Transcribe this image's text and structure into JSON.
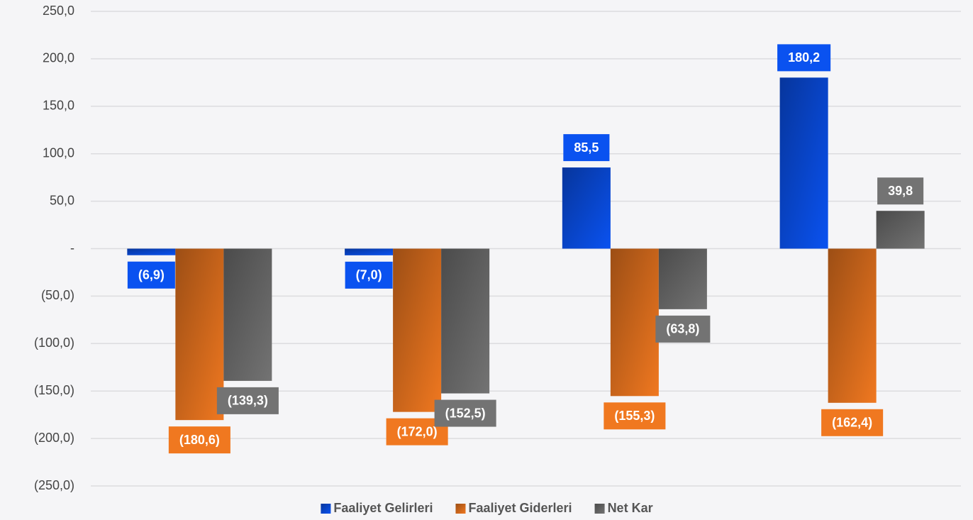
{
  "chart_data": {
    "type": "bar",
    "categories": [
      null,
      null,
      null,
      null
    ],
    "series": [
      {
        "name": "Faaliyet Gelirleri",
        "color": "#0a52f0",
        "values": [
          -6.9,
          -7.0,
          85.5,
          180.2
        ],
        "value_labels": [
          "(6,9)",
          "(7,0)",
          "85,5",
          "180,2"
        ]
      },
      {
        "name": "Faaliyet Giderleri",
        "color": "#f07820",
        "values": [
          -180.6,
          -172.0,
          -155.3,
          -162.4
        ],
        "value_labels": [
          "(180,6)",
          "(172,0)",
          "(155,3)",
          "(162,4)"
        ]
      },
      {
        "name": "Net Kar",
        "color": "#737373",
        "values": [
          -139.3,
          -152.5,
          -63.8,
          39.8
        ],
        "value_labels": [
          "(139,3)",
          "(152,5)",
          "(63,8)",
          "39,8"
        ]
      }
    ],
    "ylim": [
      -250,
      250
    ],
    "yticks": [
      {
        "value": 250,
        "label": "250,0"
      },
      {
        "value": 200,
        "label": "200,0"
      },
      {
        "value": 150,
        "label": "150,0"
      },
      {
        "value": 100,
        "label": "100,0"
      },
      {
        "value": 50,
        "label": "50,0"
      },
      {
        "value": 0,
        "label": "-"
      },
      {
        "value": -50,
        "label": "(50,0)"
      },
      {
        "value": -100,
        "label": "(100,0)"
      },
      {
        "value": -150,
        "label": "(150,0)"
      },
      {
        "value": -200,
        "label": "(200,0)"
      },
      {
        "value": -250,
        "label": "(250,0)"
      }
    ],
    "grid": true,
    "legend": "bottom"
  }
}
